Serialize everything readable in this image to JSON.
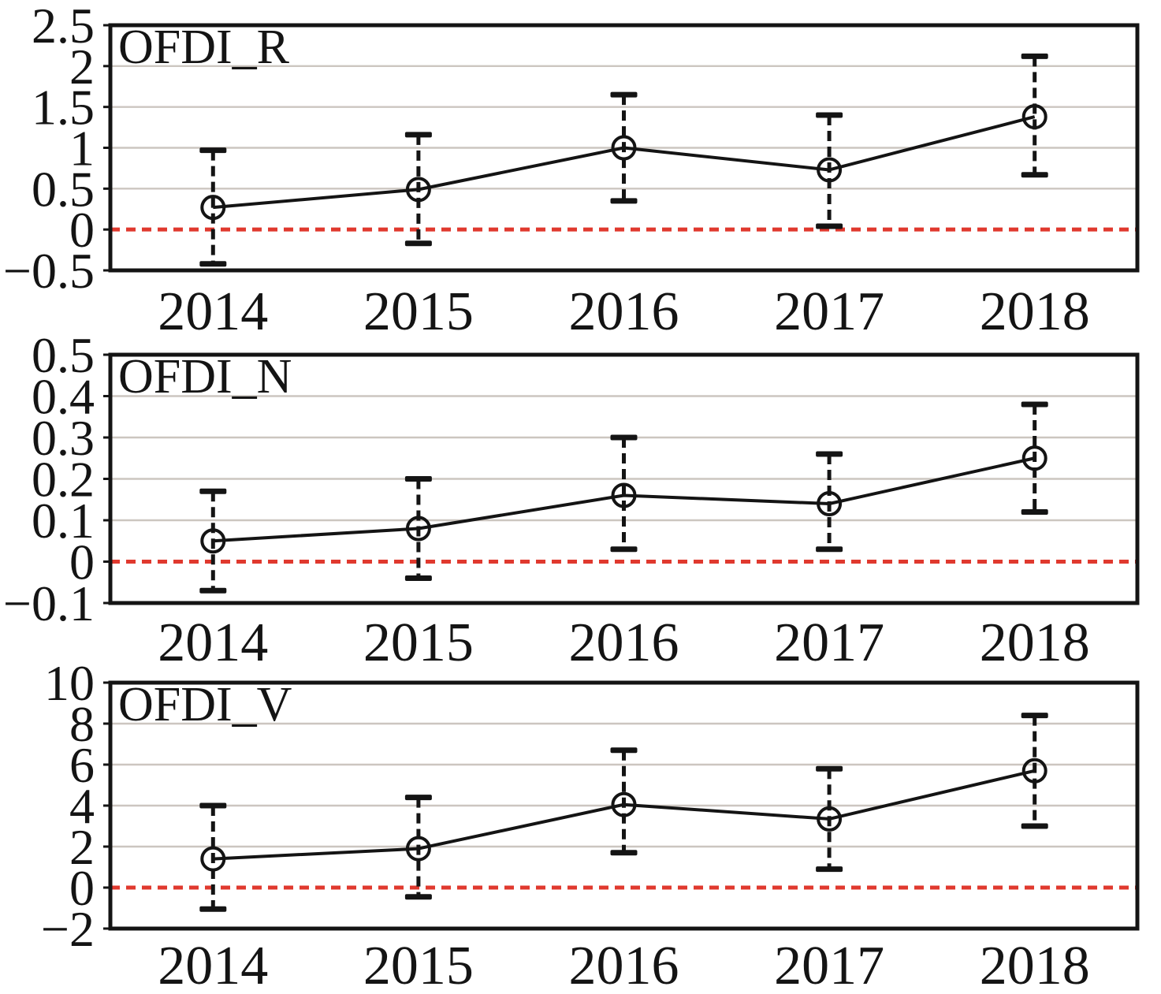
{
  "colors": {
    "line": "#141414",
    "frame": "#141414",
    "grid": "#ccc6c0",
    "zero_line": "#e0392e",
    "background": "#ffffff",
    "text": "#141414"
  },
  "chart_data": [
    {
      "type": "line",
      "title": "OFDI_R",
      "x": [
        "2014",
        "2015",
        "2016",
        "2017",
        "2018"
      ],
      "values": [
        0.27,
        0.49,
        1.0,
        0.73,
        1.38
      ],
      "ci_lower": [
        -0.42,
        -0.17,
        0.35,
        0.04,
        0.67
      ],
      "ci_upper": [
        0.97,
        1.16,
        1.65,
        1.4,
        2.12
      ],
      "ylim": [
        -0.5,
        2.5
      ],
      "yticks": [
        2.5,
        2,
        1.5,
        1,
        0.5,
        0,
        -0.5
      ],
      "ytick_labels": [
        "2.5",
        "2",
        "1.5",
        "1",
        "0.5",
        "0",
        "−0.5"
      ],
      "xlabel": "",
      "ylabel": "",
      "zero_line": 0,
      "grid": true,
      "marker": "open-circle",
      "error_bar_style": "dashed-whisker",
      "legend": "none"
    },
    {
      "type": "line",
      "title": "OFDI_N",
      "x": [
        "2014",
        "2015",
        "2016",
        "2017",
        "2018"
      ],
      "values": [
        0.05,
        0.08,
        0.16,
        0.14,
        0.25
      ],
      "ci_lower": [
        -0.07,
        -0.04,
        0.03,
        0.03,
        0.12
      ],
      "ci_upper": [
        0.17,
        0.2,
        0.3,
        0.26,
        0.38
      ],
      "ylim": [
        -0.1,
        0.5
      ],
      "yticks": [
        0.5,
        0.4,
        0.3,
        0.2,
        0.1,
        0,
        -0.1
      ],
      "ytick_labels": [
        "0.5",
        "0.4",
        "0.3",
        "0.2",
        "0.1",
        "0",
        "−0.1"
      ],
      "xlabel": "",
      "ylabel": "",
      "zero_line": 0,
      "grid": true,
      "marker": "open-circle",
      "error_bar_style": "dashed-whisker",
      "legend": "none"
    },
    {
      "type": "line",
      "title": "OFDI_V",
      "x": [
        "2014",
        "2015",
        "2016",
        "2017",
        "2018"
      ],
      "values": [
        1.4,
        1.9,
        4.05,
        3.35,
        5.7
      ],
      "ci_lower": [
        -1.05,
        -0.45,
        1.7,
        0.9,
        3.0
      ],
      "ci_upper": [
        4.0,
        4.4,
        6.7,
        5.8,
        8.4
      ],
      "ylim": [
        -2,
        10
      ],
      "yticks": [
        10,
        8,
        6,
        4,
        2,
        0,
        -2
      ],
      "ytick_labels": [
        "10",
        "8",
        "6",
        "4",
        "2",
        "0",
        "−2"
      ],
      "xlabel": "",
      "ylabel": "",
      "zero_line": 0,
      "grid": true,
      "marker": "open-circle",
      "error_bar_style": "dashed-whisker",
      "legend": "none"
    }
  ]
}
